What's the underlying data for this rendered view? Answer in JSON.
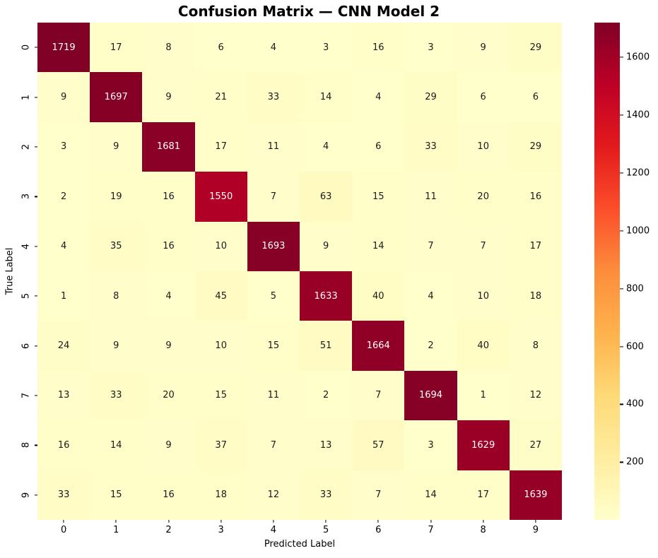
{
  "chart_data": {
    "type": "heatmap",
    "title": "Confusion Matrix — CNN Model 2",
    "xlabel": "Predicted Label",
    "ylabel": "True Label",
    "x_tick_labels": [
      "0",
      "1",
      "2",
      "3",
      "4",
      "5",
      "6",
      "7",
      "8",
      "9"
    ],
    "y_tick_labels": [
      "0",
      "1",
      "2",
      "3",
      "4",
      "5",
      "6",
      "7",
      "8",
      "9"
    ],
    "matrix": [
      [
        1719,
        17,
        8,
        6,
        4,
        3,
        16,
        3,
        9,
        29
      ],
      [
        9,
        1697,
        9,
        21,
        33,
        14,
        4,
        29,
        6,
        6
      ],
      [
        3,
        9,
        1681,
        17,
        11,
        4,
        6,
        33,
        10,
        29
      ],
      [
        2,
        19,
        16,
        1550,
        7,
        63,
        15,
        11,
        20,
        16
      ],
      [
        4,
        35,
        16,
        10,
        1693,
        9,
        14,
        7,
        7,
        17
      ],
      [
        1,
        8,
        4,
        45,
        5,
        1633,
        40,
        4,
        10,
        18
      ],
      [
        24,
        9,
        9,
        10,
        15,
        51,
        1664,
        2,
        40,
        8
      ],
      [
        13,
        33,
        20,
        15,
        11,
        2,
        7,
        1694,
        1,
        12
      ],
      [
        16,
        14,
        9,
        37,
        7,
        13,
        57,
        3,
        1629,
        27
      ],
      [
        33,
        15,
        16,
        18,
        12,
        33,
        7,
        14,
        17,
        1639
      ]
    ],
    "vmin": 1,
    "vmax": 1719,
    "grid": false,
    "colorbar_position": "right",
    "colorbar_ticks": [
      200,
      400,
      600,
      800,
      1000,
      1200,
      1400,
      1600
    ],
    "colormap": {
      "name": "YlOrRd",
      "stops": [
        {
          "pos": 0.0,
          "color": "#ffffcc"
        },
        {
          "pos": 0.125,
          "color": "#ffeda0"
        },
        {
          "pos": 0.25,
          "color": "#fed976"
        },
        {
          "pos": 0.375,
          "color": "#feb24c"
        },
        {
          "pos": 0.5,
          "color": "#fd8d3c"
        },
        {
          "pos": 0.625,
          "color": "#fc4e2a"
        },
        {
          "pos": 0.75,
          "color": "#e31a1c"
        },
        {
          "pos": 0.875,
          "color": "#bd0026"
        },
        {
          "pos": 1.0,
          "color": "#800026"
        }
      ]
    },
    "annotation_text_color_dark": "#1a1a1a",
    "annotation_text_color_light": "#ffffff"
  }
}
